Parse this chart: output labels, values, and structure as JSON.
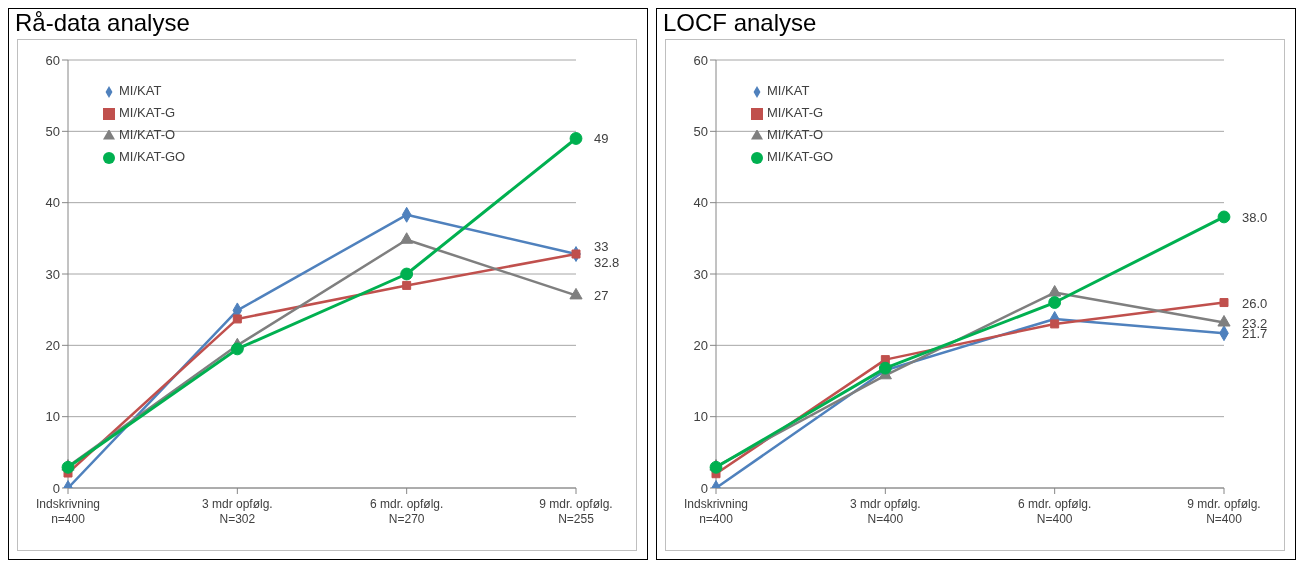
{
  "chart_data": [
    {
      "type": "line",
      "title": "Rå-data analyse",
      "categories": [
        "Indskrivning\nn=400",
        "3 mdr opfølg.\nN=302",
        "6 mdr. opfølg.\nN=270",
        "9 mdr. opfølg.\nN=255"
      ],
      "ylim": [
        0,
        60
      ],
      "yticks": [
        0,
        10,
        20,
        30,
        40,
        50,
        60
      ],
      "grid": "y",
      "legend": "top left",
      "series": [
        {
          "name": "MI/KAT",
          "color": "#4f81bd",
          "marker": "diamond",
          "values": [
            0,
            24.9,
            38.3,
            32.8
          ],
          "value_labels": [
            null,
            null,
            null,
            "33"
          ]
        },
        {
          "name": "MI/KAT-G",
          "color": "#c0504d",
          "marker": "square",
          "values": [
            2.1,
            23.7,
            28.4,
            32.8
          ],
          "value_labels": [
            null,
            null,
            null,
            "32.8"
          ]
        },
        {
          "name": "MI/KAT-O",
          "color": "#7f7f7f",
          "marker": "triangle",
          "values": [
            3.0,
            20.0,
            34.8,
            27
          ],
          "value_labels": [
            null,
            null,
            null,
            "27"
          ]
        },
        {
          "name": "MI/KAT-GO",
          "color": "#00b050",
          "marker": "circle",
          "values": [
            2.9,
            19.5,
            30.0,
            49
          ],
          "value_labels": [
            null,
            null,
            null,
            "49"
          ]
        }
      ]
    },
    {
      "type": "line",
      "title": "LOCF analyse",
      "categories": [
        "Indskrivning\nn=400",
        "3 mdr opfølg.\nN=400",
        "6 mdr. opfølg.\nN=400",
        "9 mdr. opfølg.\nN=400"
      ],
      "ylim": [
        0,
        60
      ],
      "yticks": [
        0,
        10,
        20,
        30,
        40,
        50,
        60
      ],
      "grid": "y",
      "legend": "top left",
      "series": [
        {
          "name": "MI/KAT",
          "color": "#4f81bd",
          "marker": "diamond",
          "values": [
            0,
            16.5,
            23.7,
            21.7
          ],
          "value_labels": [
            null,
            null,
            null,
            "21.7"
          ]
        },
        {
          "name": "MI/KAT-G",
          "color": "#c0504d",
          "marker": "square",
          "values": [
            2.0,
            18.0,
            23.0,
            26.0
          ],
          "value_labels": [
            null,
            null,
            null,
            "26.0"
          ]
        },
        {
          "name": "MI/KAT-O",
          "color": "#7f7f7f",
          "marker": "triangle",
          "values": [
            3.0,
            15.8,
            27.4,
            23.2
          ],
          "value_labels": [
            null,
            null,
            null,
            "23.2"
          ]
        },
        {
          "name": "MI/KAT-GO",
          "color": "#00b050",
          "marker": "circle",
          "values": [
            2.9,
            16.8,
            26.0,
            38.0
          ],
          "value_labels": [
            null,
            null,
            null,
            "38.0"
          ]
        }
      ]
    }
  ]
}
